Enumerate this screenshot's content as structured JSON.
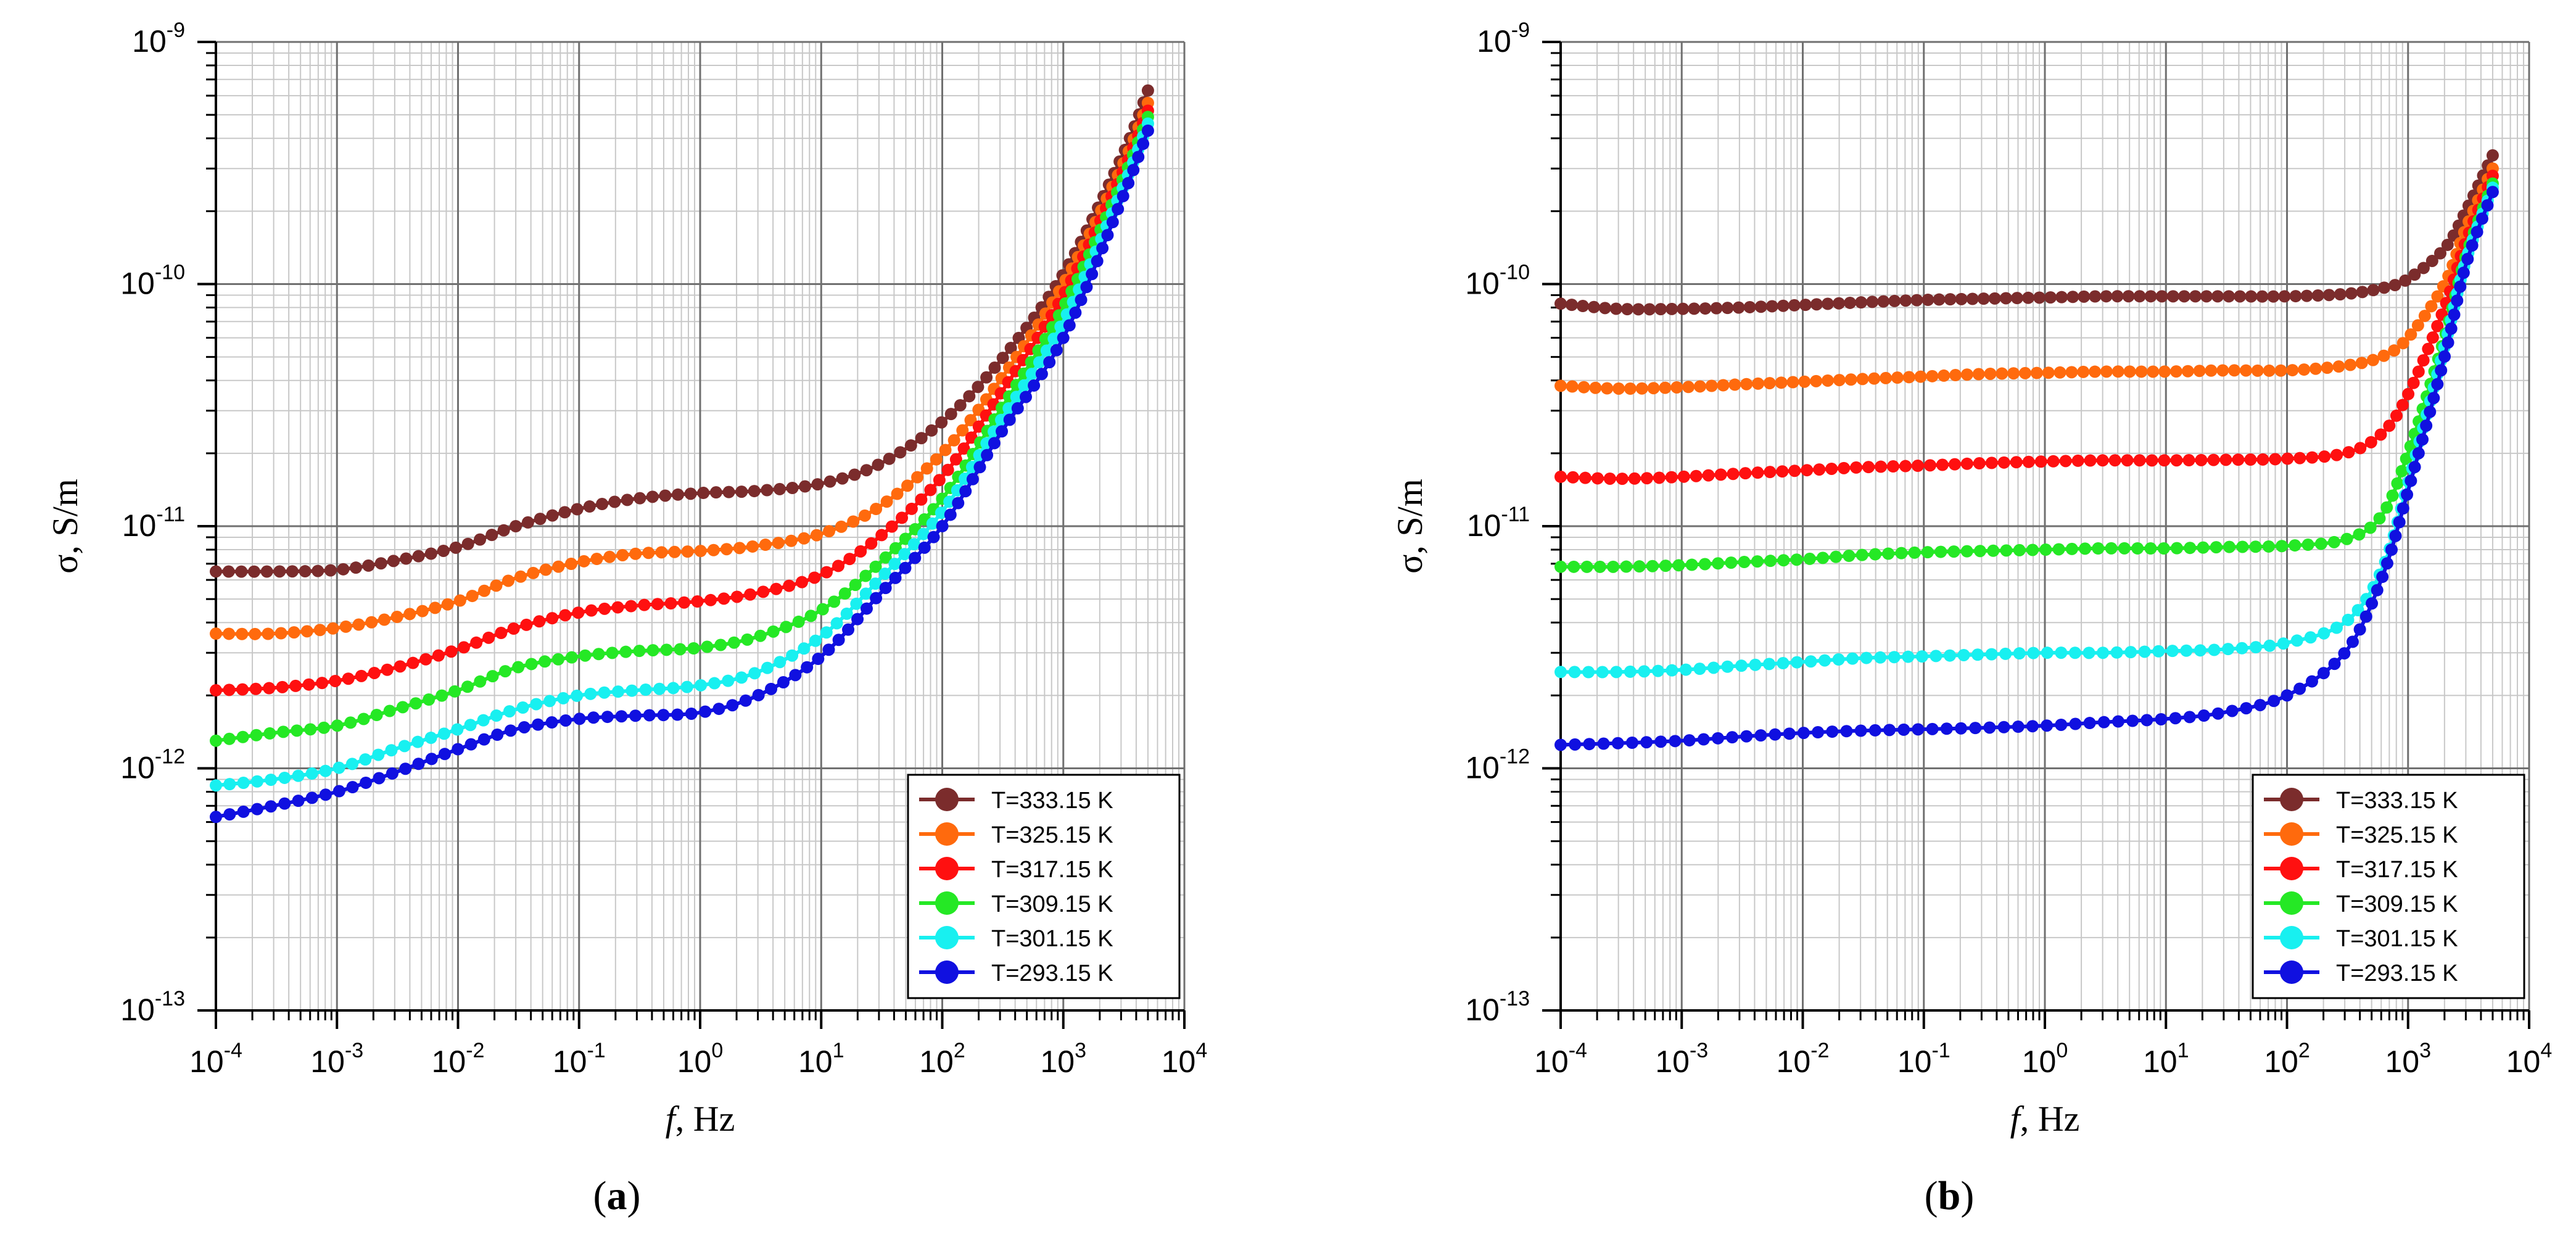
{
  "chart_data": [
    {
      "type": "line",
      "panel_label": "a",
      "panel_label_text": "(a)",
      "xlabel_italic": "f",
      "xlabel_unit": ", Hz",
      "ylabel": "σ, S/m",
      "xscale": "log",
      "yscale": "log",
      "xlim": [
        0.0001,
        10000
      ],
      "ylim": [
        1e-13,
        1e-09
      ],
      "x_ticks": [
        {
          "base": "10",
          "exp": "-4"
        },
        {
          "base": "10",
          "exp": "-3"
        },
        {
          "base": "10",
          "exp": "-2"
        },
        {
          "base": "10",
          "exp": "-1"
        },
        {
          "base": "10",
          "exp": "0"
        },
        {
          "base": "10",
          "exp": "1"
        },
        {
          "base": "10",
          "exp": "2"
        },
        {
          "base": "10",
          "exp": "3"
        },
        {
          "base": "10",
          "exp": "4"
        }
      ],
      "y_ticks": [
        {
          "base": "10",
          "exp": "-13"
        },
        {
          "base": "10",
          "exp": "-12"
        },
        {
          "base": "10",
          "exp": "-11"
        },
        {
          "base": "10",
          "exp": "-10"
        },
        {
          "base": "10",
          "exp": "-9"
        }
      ],
      "grid": true,
      "legend_position": "bottom-right",
      "x": [
        0.0001,
        0.0003,
        0.001,
        0.003,
        0.01,
        0.03,
        0.1,
        0.3,
        1,
        3,
        10,
        30,
        100,
        300,
        1000,
        3000,
        5000
      ],
      "series": [
        {
          "name": "T=333.15 K",
          "color": "#7b2c2c",
          "values": [
            6.5e-12,
            6.5e-12,
            6.6e-12,
            7.2e-12,
            8.2e-12,
            1e-11,
            1.18e-11,
            1.3e-11,
            1.37e-11,
            1.4e-11,
            1.5e-11,
            1.8e-11,
            2.7e-11,
            4.8e-11,
            1.1e-10,
            3.3e-10,
            6.3e-10
          ]
        },
        {
          "name": "T=325.15 K",
          "color": "#ff6a0d",
          "values": [
            3.6e-12,
            3.6e-12,
            3.8e-12,
            4.2e-12,
            4.9e-12,
            6.1e-12,
            7.1e-12,
            7.7e-12,
            7.9e-12,
            8.3e-12,
            9.3e-12,
            1.2e-11,
            2e-11,
            4e-11,
            1e-10,
            3e-10,
            5.6e-10
          ]
        },
        {
          "name": "T=317.15 K",
          "color": "#ff1010",
          "values": [
            2.1e-12,
            2.15e-12,
            2.3e-12,
            2.6e-12,
            3.1e-12,
            3.8e-12,
            4.4e-12,
            4.7e-12,
            4.9e-12,
            5.3e-12,
            6.3e-12,
            9e-12,
            1.6e-11,
            3.5e-11,
            9e-11,
            2.8e-10,
            5.2e-10
          ]
        },
        {
          "name": "T=309.15 K",
          "color": "#25e825",
          "values": [
            1.3e-12,
            1.4e-12,
            1.5e-12,
            1.75e-12,
            2.1e-12,
            2.6e-12,
            2.9e-12,
            3.05e-12,
            3.15e-12,
            3.5e-12,
            4.5e-12,
            7e-12,
            1.3e-11,
            3e-11,
            8e-11,
            2.6e-10,
            4.9e-10
          ]
        },
        {
          "name": "T=301.15 K",
          "color": "#18f0f0",
          "values": [
            8.5e-13,
            9e-13,
            1e-12,
            1.2e-12,
            1.45e-12,
            1.75e-12,
            2e-12,
            2.1e-12,
            2.2e-12,
            2.5e-12,
            3.5e-12,
            6e-12,
            1.15e-11,
            2.7e-11,
            7e-11,
            2.4e-10,
            4.6e-10
          ]
        },
        {
          "name": "T=293.15 K",
          "color": "#1010e0",
          "values": [
            6.3e-13,
            7e-13,
            8e-13,
            9.6e-13,
            1.2e-12,
            1.45e-12,
            1.6e-12,
            1.65e-12,
            1.7e-12,
            2e-12,
            2.9e-12,
            5.2e-12,
            1e-11,
            2.4e-11,
            6e-11,
            2.2e-10,
            4.3e-10
          ]
        }
      ]
    },
    {
      "type": "line",
      "panel_label": "b",
      "panel_label_text": "(b)",
      "xlabel_italic": "f",
      "xlabel_unit": ", Hz",
      "ylabel": "σ, S/m",
      "xscale": "log",
      "yscale": "log",
      "xlim": [
        0.0001,
        10000
      ],
      "ylim": [
        1e-13,
        1e-09
      ],
      "x_ticks": [
        {
          "base": "10",
          "exp": "-4"
        },
        {
          "base": "10",
          "exp": "-3"
        },
        {
          "base": "10",
          "exp": "-2"
        },
        {
          "base": "10",
          "exp": "-1"
        },
        {
          "base": "10",
          "exp": "0"
        },
        {
          "base": "10",
          "exp": "1"
        },
        {
          "base": "10",
          "exp": "2"
        },
        {
          "base": "10",
          "exp": "3"
        },
        {
          "base": "10",
          "exp": "4"
        }
      ],
      "y_ticks": [
        {
          "base": "10",
          "exp": "-13"
        },
        {
          "base": "10",
          "exp": "-12"
        },
        {
          "base": "10",
          "exp": "-11"
        },
        {
          "base": "10",
          "exp": "-10"
        },
        {
          "base": "10",
          "exp": "-9"
        }
      ],
      "grid": true,
      "legend_position": "bottom-right",
      "x": [
        0.0001,
        0.0003,
        0.001,
        0.003,
        0.01,
        0.03,
        0.1,
        0.3,
        1,
        3,
        10,
        30,
        100,
        300,
        600,
        1000,
        2000,
        3000,
        5000
      ],
      "series": [
        {
          "name": "T=333.15 K",
          "color": "#7b2c2c",
          "values": [
            8.3e-11,
            7.9e-11,
            7.9e-11,
            8e-11,
            8.2e-11,
            8.4e-11,
            8.6e-11,
            8.7e-11,
            8.8e-11,
            8.9e-11,
            8.9e-11,
            8.9e-11,
            8.9e-11,
            9.1e-11,
            9.6e-11,
            1.05e-10,
            1.4e-10,
            2e-10,
            3.4e-10
          ]
        },
        {
          "name": "T=325.15 K",
          "color": "#ff6a0d",
          "values": [
            3.8e-11,
            3.7e-11,
            3.75e-11,
            3.85e-11,
            3.95e-11,
            4.05e-11,
            4.15e-11,
            4.25e-11,
            4.3e-11,
            4.35e-11,
            4.35e-11,
            4.4e-11,
            4.4e-11,
            4.6e-11,
            5e-11,
            6e-11,
            1e-10,
            1.7e-10,
            3e-10
          ]
        },
        {
          "name": "T=317.15 K",
          "color": "#ff1010",
          "values": [
            1.6e-11,
            1.57e-11,
            1.6e-11,
            1.65e-11,
            1.7e-11,
            1.75e-11,
            1.78e-11,
            1.82e-11,
            1.85e-11,
            1.87e-11,
            1.87e-11,
            1.88e-11,
            1.9e-11,
            2e-11,
            2.4e-11,
            3.5e-11,
            8e-11,
            1.5e-10,
            2.8e-10
          ]
        },
        {
          "name": "T=309.15 K",
          "color": "#25e825",
          "values": [
            6.8e-12,
            6.8e-12,
            6.9e-12,
            7.1e-12,
            7.3e-12,
            7.6e-12,
            7.8e-12,
            7.9e-12,
            8e-12,
            8.1e-12,
            8.1e-12,
            8.2e-12,
            8.3e-12,
            8.8e-12,
            1.1e-11,
            2e-11,
            6e-11,
            1.3e-10,
            2.6e-10
          ]
        },
        {
          "name": "T=301.15 K",
          "color": "#18f0f0",
          "values": [
            2.5e-12,
            2.5e-12,
            2.55e-12,
            2.65e-12,
            2.75e-12,
            2.85e-12,
            2.9e-12,
            2.95e-12,
            3e-12,
            3e-12,
            3.05e-12,
            3.1e-12,
            3.3e-12,
            4e-12,
            6.5e-12,
            1.5e-11,
            5.5e-11,
            1.25e-10,
            2.5e-10
          ]
        },
        {
          "name": "T=293.15 K",
          "color": "#1010e0",
          "values": [
            1.25e-12,
            1.27e-12,
            1.3e-12,
            1.35e-12,
            1.4e-12,
            1.43e-12,
            1.45e-12,
            1.47e-12,
            1.5e-12,
            1.55e-12,
            1.6e-12,
            1.7e-12,
            2e-12,
            3e-12,
            6e-12,
            1.4e-11,
            5e-11,
            1.2e-10,
            2.4e-10
          ]
        }
      ]
    }
  ]
}
